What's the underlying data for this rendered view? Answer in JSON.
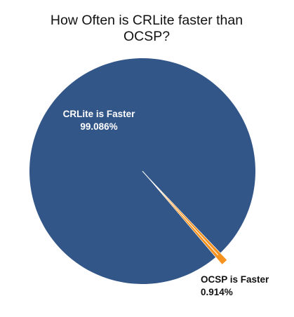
{
  "chart_data": {
    "type": "pie",
    "title": "How Often is CRLite faster than OCSP?",
    "title_lines": [
      "How Often is CRLite faster than",
      "OCSP?"
    ],
    "slices": [
      {
        "label": "CRLite is Faster",
        "value": 99.086,
        "value_label": "99.086%",
        "color": "#325688"
      },
      {
        "label": "OCSP is Faster",
        "value": 0.914,
        "value_label": "0.914%",
        "color": "#f6921e"
      }
    ],
    "legend": "none"
  }
}
